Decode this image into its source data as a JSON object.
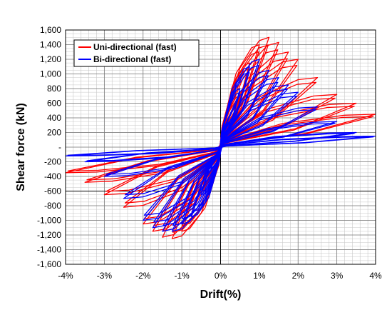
{
  "chart_data": {
    "type": "line",
    "title": "",
    "xlabel": "Drift(%)",
    "ylabel": "Shear force (kN)",
    "xlim": [
      -4,
      4
    ],
    "ylim": [
      -1600,
      1600
    ],
    "x_ticks": [
      -4,
      -3,
      -2,
      -1,
      0,
      1,
      2,
      3,
      4
    ],
    "x_tick_labels": [
      "-4%",
      "-3%",
      "-2%",
      "-1%",
      "0%",
      "1%",
      "2%",
      "3%",
      "4%"
    ],
    "y_ticks": [
      -1600,
      -1400,
      -1200,
      -1000,
      -800,
      -600,
      -400,
      -200,
      0,
      200,
      400,
      600,
      800,
      1000,
      1200,
      1400,
      1600
    ],
    "y_tick_labels": [
      "-1,600",
      "-1,400",
      "-1,200",
      "-1,000",
      "-800",
      "-600",
      "-400",
      "-200",
      "-",
      "200",
      "400",
      "600",
      "800",
      "1,000",
      "1,200",
      "1,400",
      "1,600"
    ],
    "grid": true,
    "legend_position": "top-left",
    "series": [
      {
        "name": "Uni-directional (fast)",
        "color": "#ff0000",
        "cycles": [
          {
            "drift": 0.25,
            "pos_peak": 300,
            "neg_peak": -250
          },
          {
            "drift": 0.5,
            "pos_peak": 700,
            "neg_peak": -550
          },
          {
            "drift": 0.75,
            "pos_peak": 1150,
            "neg_peak": -950
          },
          {
            "drift": 1.0,
            "pos_peak": 1400,
            "neg_peak": -1150
          },
          {
            "drift": 1.25,
            "pos_peak": 1500,
            "neg_peak": -1250
          },
          {
            "drift": 1.5,
            "pos_peak": 1430,
            "neg_peak": -1230
          },
          {
            "drift": 1.75,
            "pos_peak": 1300,
            "neg_peak": -1150
          },
          {
            "drift": 2.0,
            "pos_peak": 1200,
            "neg_peak": -1050
          },
          {
            "drift": 2.5,
            "pos_peak": 950,
            "neg_peak": -820
          },
          {
            "drift": 3.0,
            "pos_peak": 720,
            "neg_peak": -650
          },
          {
            "drift": 3.5,
            "pos_peak": 600,
            "neg_peak": -480
          },
          {
            "drift": 4.0,
            "pos_peak": 450,
            "neg_peak": -350
          }
        ]
      },
      {
        "name": "Bi-directional (fast)",
        "color": "#0000ff",
        "cycles": [
          {
            "drift": 0.25,
            "pos_peak": 350,
            "neg_peak": -300
          },
          {
            "drift": 0.5,
            "pos_peak": 800,
            "neg_peak": -650
          },
          {
            "drift": 0.75,
            "pos_peak": 1100,
            "neg_peak": -950
          },
          {
            "drift": 1.0,
            "pos_peak": 1200,
            "neg_peak": -1050
          },
          {
            "drift": 1.25,
            "pos_peak": 1050,
            "neg_peak": -1150
          },
          {
            "drift": 1.5,
            "pos_peak": 950,
            "neg_peak": -1150
          },
          {
            "drift": 1.75,
            "pos_peak": 850,
            "neg_peak": -1100
          },
          {
            "drift": 2.0,
            "pos_peak": 750,
            "neg_peak": -1000
          },
          {
            "drift": 2.5,
            "pos_peak": 550,
            "neg_peak": -700
          },
          {
            "drift": 3.0,
            "pos_peak": 350,
            "neg_peak": -400
          },
          {
            "drift": 3.5,
            "pos_peak": 200,
            "neg_peak": -200
          },
          {
            "drift": 4.0,
            "pos_peak": 150,
            "neg_peak": -120
          }
        ]
      }
    ]
  }
}
